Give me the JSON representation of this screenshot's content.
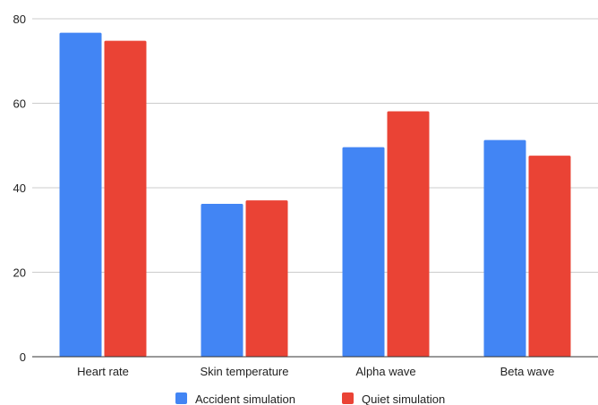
{
  "chart_data": {
    "type": "bar",
    "categories": [
      "Heart rate",
      "Skin temperature",
      "Alpha wave",
      "Beta wave"
    ],
    "series": [
      {
        "name": "Accident simulation",
        "color": "#4285f4",
        "values": [
          76.7,
          36.2,
          49.6,
          51.3
        ]
      },
      {
        "name": "Quiet simulation",
        "color": "#ea4335",
        "values": [
          74.8,
          37.0,
          58.1,
          47.6
        ]
      }
    ],
    "ylim": [
      0,
      80
    ],
    "yticks": [
      0,
      20,
      40,
      60,
      80
    ],
    "grid": true,
    "legend_position": "bottom"
  }
}
